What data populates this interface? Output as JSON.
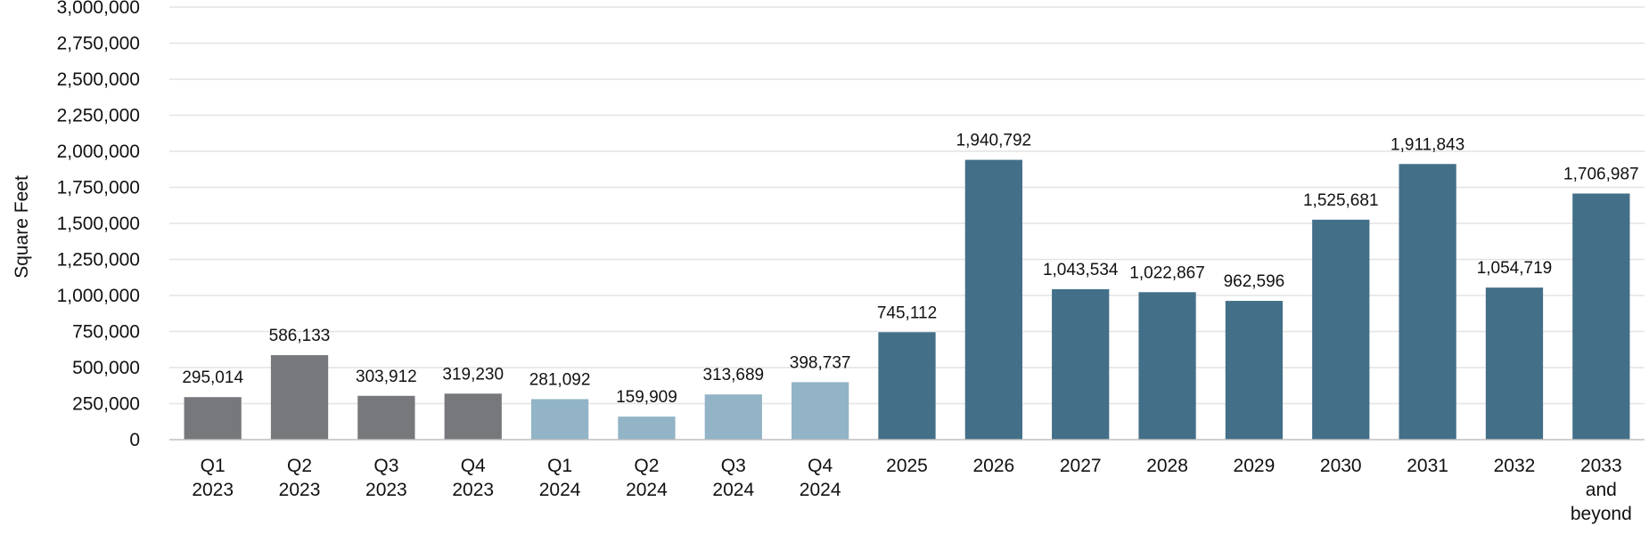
{
  "chart_data": {
    "type": "bar",
    "title": "",
    "xlabel": "",
    "ylabel": "Square Feet",
    "ylim": [
      0,
      3000000
    ],
    "yticks": [
      "0",
      "250,000",
      "500,000",
      "750,000",
      "1,000,000",
      "1,250,000",
      "1,500,000",
      "1,750,000",
      "2,000,000",
      "2,250,000",
      "2,500,000",
      "2,750,000",
      "3,000,000"
    ],
    "ytick_values": [
      0,
      250000,
      500000,
      750000,
      1000000,
      1250000,
      1500000,
      1750000,
      2000000,
      2250000,
      2500000,
      2750000,
      3000000
    ],
    "grid": true,
    "legend": "none",
    "categories": [
      [
        "Q1",
        "2023"
      ],
      [
        "Q2",
        "2023"
      ],
      [
        "Q3",
        "2023"
      ],
      [
        "Q4",
        "2023"
      ],
      [
        "Q1",
        "2024"
      ],
      [
        "Q2",
        "2024"
      ],
      [
        "Q3",
        "2024"
      ],
      [
        "Q4",
        "2024"
      ],
      [
        "2025"
      ],
      [
        "2026"
      ],
      [
        "2027"
      ],
      [
        "2028"
      ],
      [
        "2029"
      ],
      [
        "2030"
      ],
      [
        "2031"
      ],
      [
        "2032"
      ],
      [
        "2033",
        "and",
        "beyond"
      ]
    ],
    "values": [
      295014,
      586133,
      303912,
      319230,
      281092,
      159909,
      313689,
      398737,
      745112,
      1940792,
      1043534,
      1022867,
      962596,
      1525681,
      1911843,
      1054719,
      1706987
    ],
    "data_labels": [
      "295,014",
      "586,133",
      "303,912",
      "319,230",
      "281,092",
      "159,909",
      "313,689",
      "398,737",
      "745,112",
      "1,940,792",
      "1,043,534",
      "1,022,867",
      "962,596",
      "1,525,681",
      "1,911,843",
      "1,054,719",
      "1,706,987"
    ],
    "bar_colors": [
      "#76787b",
      "#76787b",
      "#76787b",
      "#76787b",
      "#92b4c6",
      "#92b4c6",
      "#92b4c6",
      "#92b4c6",
      "#436f88",
      "#436f88",
      "#436f88",
      "#436f88",
      "#436f88",
      "#436f88",
      "#436f88",
      "#436f88",
      "#436f88"
    ]
  }
}
